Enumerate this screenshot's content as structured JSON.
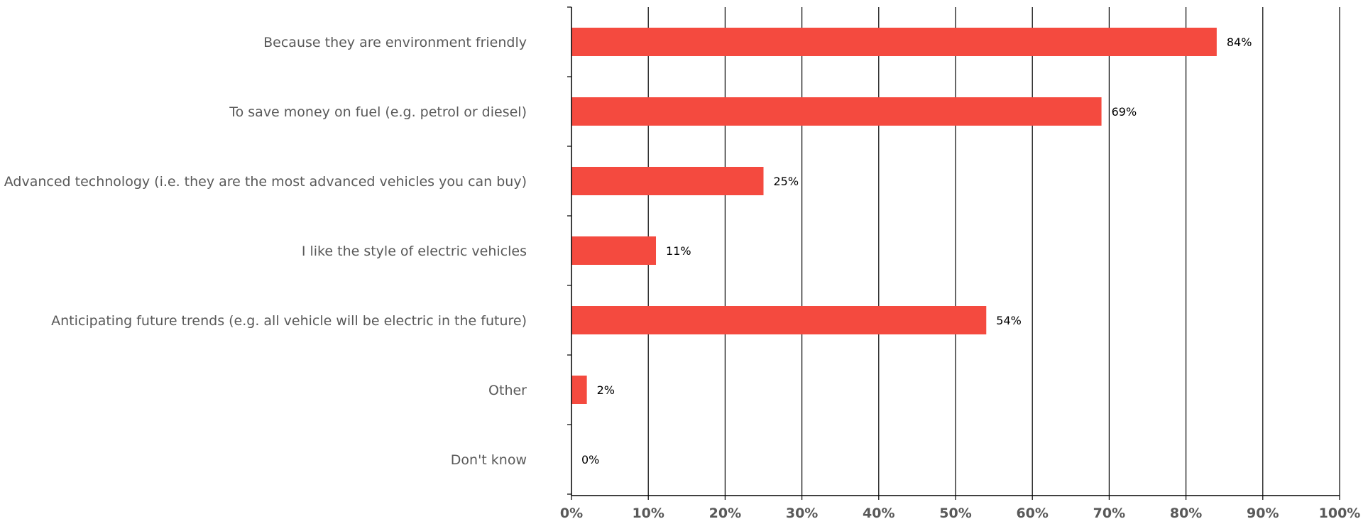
{
  "chart_data": {
    "type": "bar",
    "orientation": "horizontal",
    "categories": [
      "Because they are environment friendly",
      "To save money on fuel (e.g. petrol or diesel)",
      "Advanced technology (i.e. they are the most advanced vehicles you can buy)",
      "I like the style of electric vehicles",
      "Anticipating future trends (e.g. all vehicle will be electric in the future)",
      "Other",
      "Don't know"
    ],
    "values": [
      84,
      69,
      25,
      11,
      54,
      2,
      0
    ],
    "value_labels": [
      "84%",
      "69%",
      "25%",
      "11%",
      "54%",
      "2%",
      "0%"
    ],
    "xlim": [
      0,
      100
    ],
    "xticks": [
      0,
      10,
      20,
      30,
      40,
      50,
      60,
      70,
      80,
      90,
      100
    ],
    "xtick_labels": [
      "0%",
      "10%",
      "20%",
      "30%",
      "40%",
      "50%",
      "60%",
      "70%",
      "80%",
      "90%",
      "100%"
    ],
    "grid": "vertical",
    "legend": "none",
    "title": "",
    "xlabel": "",
    "ylabel": "",
    "colors": {
      "bar": "#f44a3f",
      "grid": "#000000",
      "axis": "#000000",
      "category_text": "#595959",
      "tick_text": "#595959",
      "value_text": "#000000"
    }
  }
}
